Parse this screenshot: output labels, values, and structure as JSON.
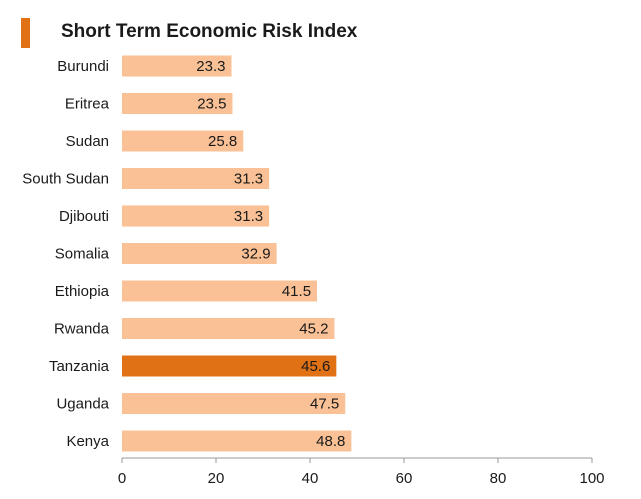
{
  "chart_data": {
    "type": "bar",
    "orientation": "horizontal",
    "title": "Short Term Economic Risk Index",
    "categories": [
      "Burundi",
      "Eritrea",
      "Sudan",
      "South Sudan",
      "Djibouti",
      "Somalia",
      "Ethiopia",
      "Rwanda",
      "Tanzania",
      "Uganda",
      "Kenya"
    ],
    "values": [
      23.3,
      23.5,
      25.8,
      31.3,
      31.3,
      32.9,
      41.5,
      45.2,
      45.6,
      47.5,
      48.8
    ],
    "value_labels": [
      "23.3",
      "23.5",
      "25.8",
      "31.3",
      "31.3",
      "32.9",
      "41.5",
      "45.2",
      "45.6",
      "47.5",
      "48.8"
    ],
    "highlight": "Tanzania",
    "xlim": [
      0,
      100
    ],
    "x_ticks": [
      "0",
      "20",
      "40",
      "60",
      "80",
      "100"
    ],
    "xlabel": "",
    "ylabel": "",
    "grid": false,
    "legend": "none"
  },
  "colors": {
    "bar": "#f9c195",
    "highlight": "#e07114",
    "accent": "#e07114",
    "text": "#1a1a1a",
    "axis": "#9a9a9a"
  }
}
